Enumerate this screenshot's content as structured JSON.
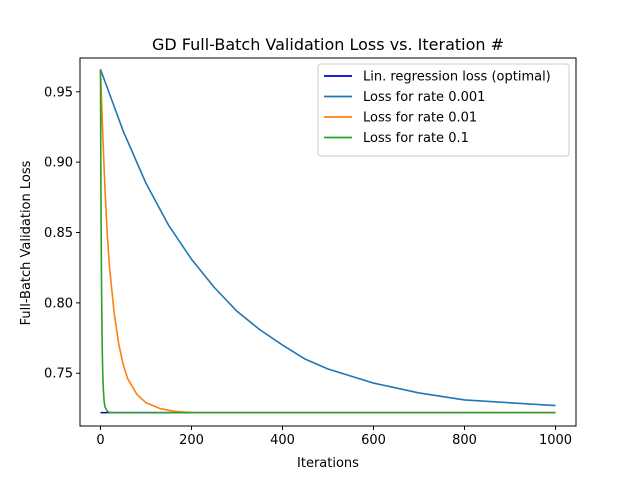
{
  "chart_data": {
    "type": "line",
    "title": "GD Full-Batch Validation Loss vs. Iteration #",
    "xlabel": "Iterations",
    "ylabel": "Full-Batch Validation Loss",
    "xlim": [
      -45,
      1045
    ],
    "ylim": [
      0.7125,
      0.974
    ],
    "xticks": [
      0,
      200,
      400,
      600,
      800,
      1000
    ],
    "xtick_labels": [
      "0",
      "200",
      "400",
      "600",
      "800",
      "1000"
    ],
    "yticks": [
      0.75,
      0.8,
      0.85,
      0.9,
      0.95
    ],
    "ytick_labels": [
      "0.75",
      "0.80",
      "0.85",
      "0.90",
      "0.95"
    ],
    "grid": false,
    "legend_position": "top-right",
    "series": [
      {
        "name": "Lin. regression loss (optimal)",
        "color": "#0000cc",
        "x": [
          0,
          1000
        ],
        "y": [
          0.722,
          0.722
        ]
      },
      {
        "name": "Loss for rate 0.001",
        "color": "#1f77b4",
        "x": [
          0,
          50,
          100,
          150,
          200,
          250,
          300,
          350,
          400,
          450,
          500,
          600,
          700,
          800,
          900,
          1000
        ],
        "y": [
          0.966,
          0.922,
          0.885,
          0.855,
          0.831,
          0.811,
          0.794,
          0.781,
          0.77,
          0.76,
          0.753,
          0.743,
          0.736,
          0.731,
          0.729,
          0.727
        ]
      },
      {
        "name": "Loss for rate 0.01",
        "color": "#ff7f0e",
        "x": [
          0,
          5,
          10,
          15,
          20,
          30,
          40,
          50,
          60,
          80,
          100,
          130,
          160,
          200,
          300,
          500,
          1000
        ],
        "y": [
          0.966,
          0.92,
          0.88,
          0.848,
          0.825,
          0.793,
          0.771,
          0.756,
          0.746,
          0.735,
          0.729,
          0.725,
          0.723,
          0.722,
          0.722,
          0.722,
          0.722
        ]
      },
      {
        "name": "Loss for rate 0.1",
        "color": "#2ca02c",
        "x": [
          0,
          1,
          2,
          3,
          4,
          5,
          6,
          8,
          10,
          15,
          20,
          50,
          1000
        ],
        "y": [
          0.966,
          0.88,
          0.825,
          0.79,
          0.765,
          0.75,
          0.74,
          0.73,
          0.726,
          0.723,
          0.722,
          0.722,
          0.722
        ]
      }
    ]
  }
}
